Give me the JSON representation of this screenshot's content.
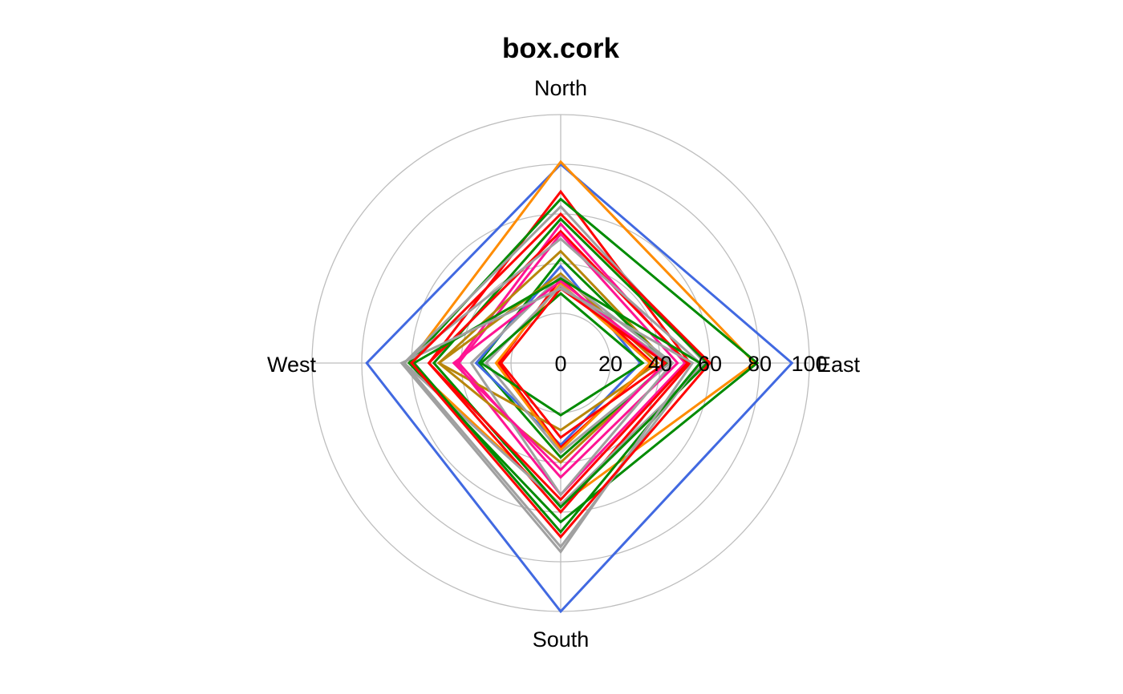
{
  "chart_data": {
    "type": "radar",
    "title": "box.cork",
    "axes": [
      "North",
      "East",
      "South",
      "West"
    ],
    "rlim": [
      0,
      100
    ],
    "ticks": [
      "0",
      "20",
      "40",
      "60",
      "80",
      "100"
    ],
    "grid": true,
    "series": [
      {
        "color": "#4169E1",
        "values": [
          80,
          93,
          100,
          78
        ]
      },
      {
        "color": "#FF8C00",
        "values": [
          81,
          78,
          57,
          61
        ]
      },
      {
        "color": "#FF0000",
        "values": [
          69,
          52,
          60,
          53
        ]
      },
      {
        "color": "#008B00",
        "values": [
          66,
          79,
          64,
          61
        ]
      },
      {
        "color": "#A0A0A0",
        "values": [
          63,
          58,
          57,
          63
        ]
      },
      {
        "color": "#008B00",
        "values": [
          58,
          59,
          58,
          51
        ]
      },
      {
        "color": "#FF1493",
        "values": [
          56,
          50,
          53,
          42
        ]
      },
      {
        "color": "#FF0000",
        "values": [
          53,
          51,
          55,
          53
        ]
      },
      {
        "color": "#FF1493",
        "values": [
          52,
          47,
          46,
          41
        ]
      },
      {
        "color": "#A0A0A0",
        "values": [
          50,
          56,
          74,
          63
        ]
      },
      {
        "color": "#B8860B",
        "values": [
          45,
          43,
          40,
          49
        ]
      },
      {
        "color": "#008B00",
        "values": [
          42,
          43,
          38,
          33
        ]
      },
      {
        "color": "#4169E1",
        "values": [
          39,
          32,
          33,
          34
        ]
      },
      {
        "color": "#FF0000",
        "values": [
          34,
          37,
          34,
          25
        ]
      },
      {
        "color": "#B8860B",
        "values": [
          36,
          39,
          27,
          49
        ]
      },
      {
        "color": "#A0A0A0",
        "values": [
          35,
          45,
          53,
          36
        ]
      },
      {
        "color": "#FF8C00",
        "values": [
          32,
          36,
          35,
          26
        ]
      },
      {
        "color": "#A0A0A0",
        "values": [
          31,
          44,
          36,
          30
        ]
      },
      {
        "color": "#008B00",
        "values": [
          28,
          33,
          21,
          32
        ]
      },
      {
        "color": "#FF1493",
        "values": [
          33,
          42,
          43,
          43
        ]
      },
      {
        "color": "#FF0000",
        "values": [
          30,
          42,
          30,
          24
        ]
      },
      {
        "color": "#008B00",
        "values": [
          34,
          56,
          68,
          59
        ]
      },
      {
        "color": "#A0A0A0",
        "values": [
          30,
          53,
          76,
          64
        ]
      },
      {
        "color": "#FF0000",
        "values": [
          60,
          60,
          70,
          60
        ]
      }
    ]
  }
}
